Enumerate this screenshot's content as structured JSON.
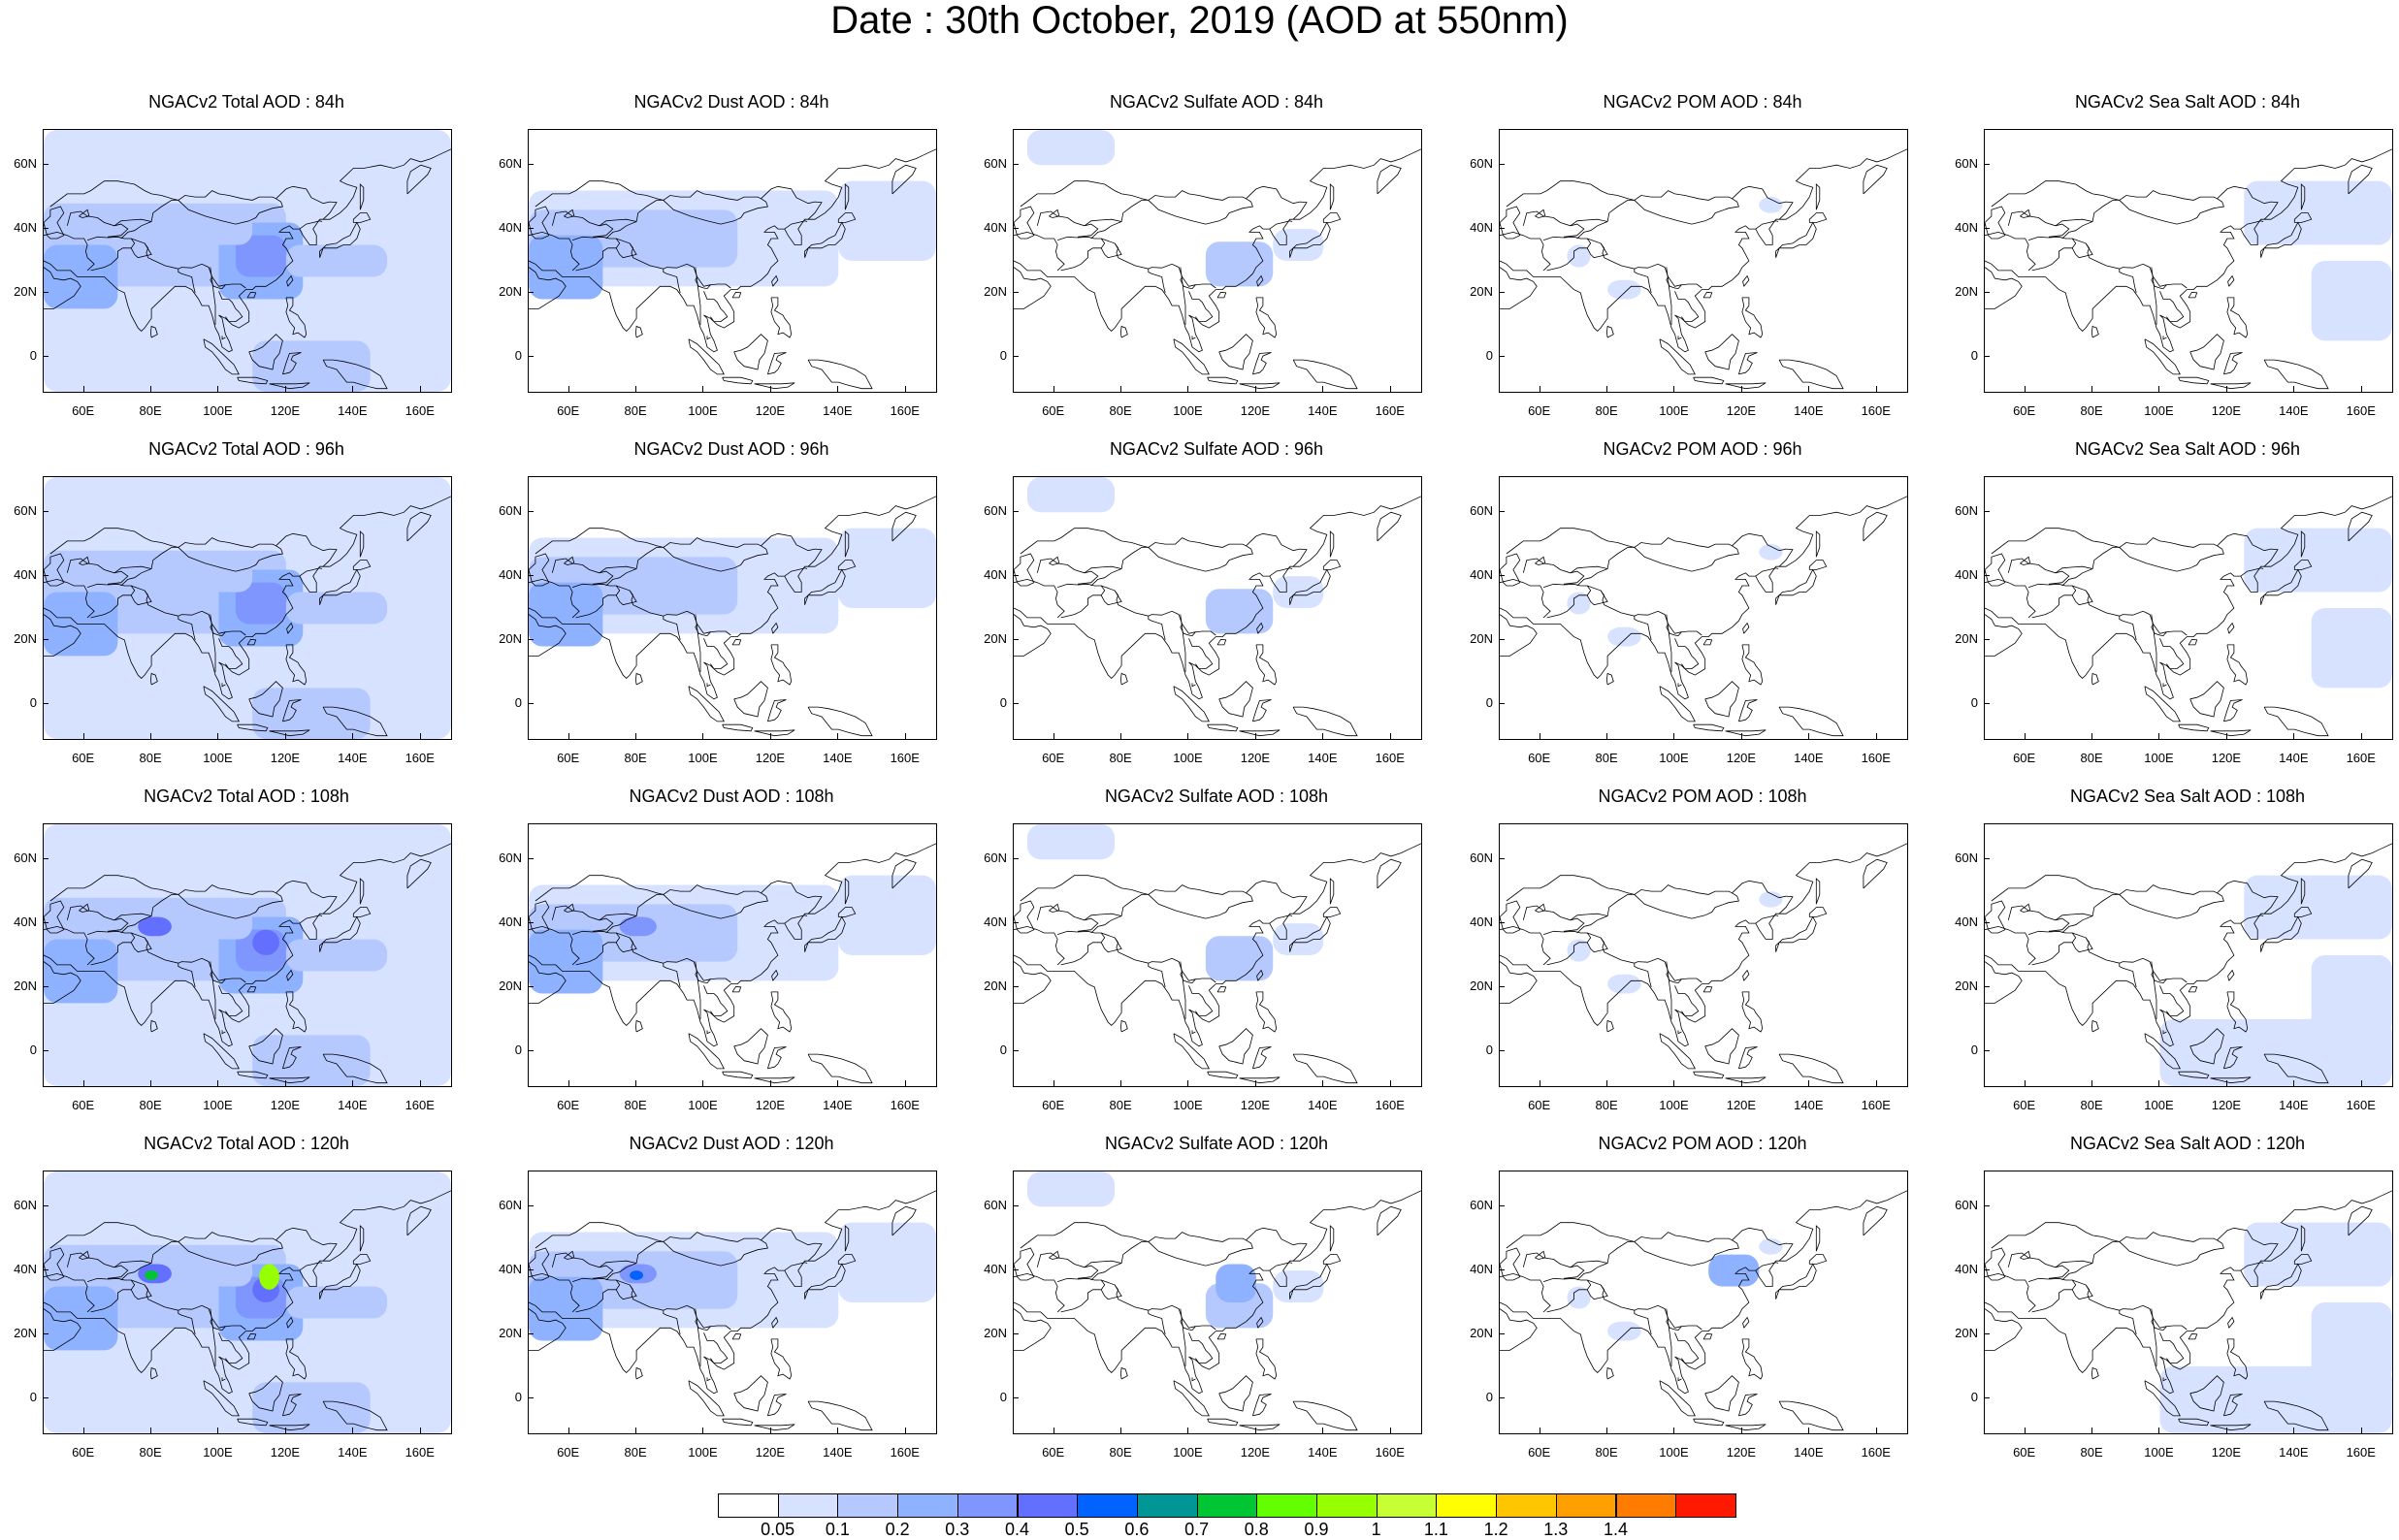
{
  "title": "Date : 30th October, 2019 (AOD at 550nm)",
  "map": {
    "lon_range": [
      48,
      169
    ],
    "lat_range": [
      -11,
      71
    ],
    "lon_ticks": [
      "60E",
      "80E",
      "100E",
      "120E",
      "140E",
      "160E"
    ],
    "lon_tick_values": [
      60,
      80,
      100,
      120,
      140,
      160
    ],
    "lat_ticks": [
      "60N",
      "40N",
      "20N",
      "0"
    ],
    "lat_tick_values": [
      60,
      40,
      20,
      0
    ],
    "coastline_color": "#000000",
    "projection": "cylindrical-equidistant"
  },
  "panels": [
    {
      "title": "NGACv2 Total AOD : 84h",
      "species": "total",
      "hour": 84
    },
    {
      "title": "NGACv2 Dust AOD : 84h",
      "species": "dust",
      "hour": 84
    },
    {
      "title": "NGACv2 Sulfate AOD : 84h",
      "species": "sulfate",
      "hour": 84
    },
    {
      "title": "NGACv2 POM AOD : 84h",
      "species": "pom",
      "hour": 84
    },
    {
      "title": "NGACv2 Sea Salt AOD : 84h",
      "species": "seasalt",
      "hour": 84
    },
    {
      "title": "NGACv2 Total AOD : 96h",
      "species": "total",
      "hour": 96
    },
    {
      "title": "NGACv2 Dust AOD : 96h",
      "species": "dust",
      "hour": 96
    },
    {
      "title": "NGACv2 Sulfate AOD : 96h",
      "species": "sulfate",
      "hour": 96
    },
    {
      "title": "NGACv2 POM AOD : 96h",
      "species": "pom",
      "hour": 96
    },
    {
      "title": "NGACv2 Sea Salt AOD : 96h",
      "species": "seasalt",
      "hour": 96
    },
    {
      "title": "NGACv2 Total AOD : 108h",
      "species": "total",
      "hour": 108
    },
    {
      "title": "NGACv2 Dust AOD : 108h",
      "species": "dust",
      "hour": 108
    },
    {
      "title": "NGACv2 Sulfate AOD : 108h",
      "species": "sulfate",
      "hour": 108
    },
    {
      "title": "NGACv2 POM AOD : 108h",
      "species": "pom",
      "hour": 108
    },
    {
      "title": "NGACv2 Sea Salt AOD : 108h",
      "species": "seasalt",
      "hour": 108
    },
    {
      "title": "NGACv2 Total AOD : 120h",
      "species": "total",
      "hour": 120
    },
    {
      "title": "NGACv2 Dust AOD : 120h",
      "species": "dust",
      "hour": 120
    },
    {
      "title": "NGACv2 Sulfate AOD : 120h",
      "species": "sulfate",
      "hour": 120
    },
    {
      "title": "NGACv2 POM AOD : 120h",
      "species": "pom",
      "hour": 120
    },
    {
      "title": "NGACv2 Sea Salt  AOD : 120h",
      "species": "seasalt",
      "hour": 120
    }
  ],
  "colorbar": {
    "labels": [
      "0.05",
      "0.1",
      "0.2",
      "0.3",
      "0.4",
      "0.5",
      "0.6",
      "0.7",
      "0.8",
      "0.9",
      "1",
      "1.1",
      "1.2",
      "1.3",
      "1.4"
    ],
    "colors": [
      "#ffffff",
      "#d6e2ff",
      "#b5c9ff",
      "#8eb2ff",
      "#7f96ff",
      "#6370ff",
      "#0063ff",
      "#009696",
      "#00c633",
      "#63ff00",
      "#96ff00",
      "#c6ff33",
      "#ffff00",
      "#ffc600",
      "#ffa000",
      "#ff7c00",
      "#ff1900"
    ]
  },
  "aod_colors": {
    "c1": "#d6e2ff",
    "c2": "#b5c9ff",
    "c3": "#8eb2ff",
    "c4": "#7f96ff",
    "c5": "#6370ff",
    "c6": "#0063ff",
    "c7": "#00c633",
    "c8": "#96ff00",
    "c9": "#c6ff33"
  }
}
